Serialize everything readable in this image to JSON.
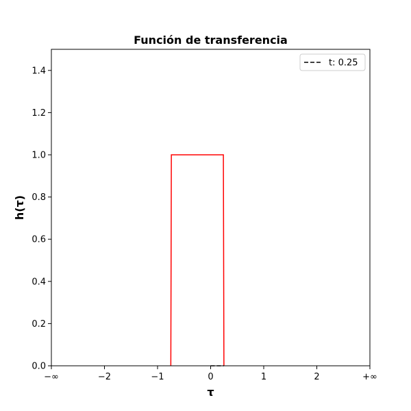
{
  "chart_data": {
    "type": "line",
    "title": "Función de transferencia",
    "xlabel": "τ",
    "ylabel": "h(τ)",
    "xlim": [
      -3,
      3
    ],
    "ylim": [
      0,
      1.5
    ],
    "x_ticks": [
      {
        "value": -3,
        "label": "−∞"
      },
      {
        "value": -2,
        "label": "−2"
      },
      {
        "value": -1,
        "label": "−1"
      },
      {
        "value": 0,
        "label": "0"
      },
      {
        "value": 1,
        "label": "1"
      },
      {
        "value": 2,
        "label": "2"
      },
      {
        "value": 3,
        "label": "+∞"
      }
    ],
    "y_ticks": [
      {
        "value": 0.0,
        "label": "0.0"
      },
      {
        "value": 0.2,
        "label": "0.2"
      },
      {
        "value": 0.4,
        "label": "0.4"
      },
      {
        "value": 0.6,
        "label": "0.6"
      },
      {
        "value": 0.8,
        "label": "0.8"
      },
      {
        "value": 1.0,
        "label": "1.0"
      },
      {
        "value": 1.2,
        "label": "1.2"
      },
      {
        "value": 1.4,
        "label": "1.4"
      }
    ],
    "grid": false,
    "legend_position": "top-right",
    "series": [
      {
        "color": "#ff0000",
        "style": "solid",
        "x": [
          -0.75,
          -0.74,
          0.24,
          0.25
        ],
        "y": [
          0,
          1,
          1,
          0
        ]
      },
      {
        "name": "t: 0.25",
        "color": "#000000",
        "style": "dashed",
        "x": [
          0,
          0.25
        ],
        "y": [
          0,
          0
        ]
      }
    ]
  }
}
